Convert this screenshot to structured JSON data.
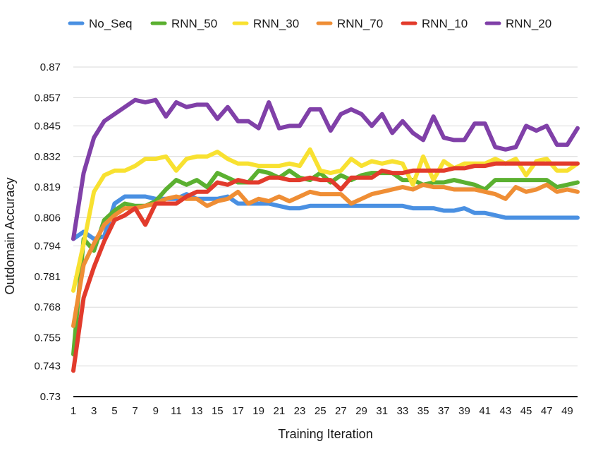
{
  "chart_data": {
    "type": "line",
    "xlabel": "Training Iteration",
    "ylabel": "Outdomain Accuracy",
    "ylim": [
      0.73,
      0.87
    ],
    "yticks": [
      "0.73",
      "0.743",
      "0.755",
      "0.768",
      "0.781",
      "0.794",
      "0.806",
      "0.819",
      "0.832",
      "0.845",
      "0.857",
      "0.87"
    ],
    "xlim": [
      1,
      50
    ],
    "xticks": [
      "1",
      "3",
      "5",
      "7",
      "9",
      "11",
      "13",
      "15",
      "17",
      "19",
      "21",
      "23",
      "25",
      "27",
      "29",
      "31",
      "33",
      "35",
      "37",
      "39",
      "41",
      "43",
      "45",
      "47",
      "49"
    ],
    "grid": "horizontal",
    "legend": "top",
    "x": [
      1,
      2,
      3,
      4,
      5,
      6,
      7,
      8,
      9,
      10,
      11,
      12,
      13,
      14,
      15,
      16,
      17,
      18,
      19,
      20,
      21,
      22,
      23,
      24,
      25,
      26,
      27,
      28,
      29,
      30,
      31,
      32,
      33,
      34,
      35,
      36,
      37,
      38,
      39,
      40,
      41,
      42,
      43,
      44,
      45,
      46,
      47,
      48,
      49,
      50
    ],
    "series": [
      {
        "name": "No_Seq",
        "color": "#4a90e2",
        "values": [
          0.797,
          0.8,
          0.797,
          0.798,
          0.812,
          0.815,
          0.815,
          0.815,
          0.814,
          0.814,
          0.814,
          0.816,
          0.814,
          0.814,
          0.814,
          0.815,
          0.812,
          0.812,
          0.812,
          0.812,
          0.811,
          0.81,
          0.81,
          0.811,
          0.811,
          0.811,
          0.811,
          0.811,
          0.811,
          0.811,
          0.811,
          0.811,
          0.811,
          0.81,
          0.81,
          0.81,
          0.809,
          0.809,
          0.81,
          0.808,
          0.808,
          0.807,
          0.806,
          0.806,
          0.806,
          0.806,
          0.806,
          0.806,
          0.806,
          0.806
        ]
      },
      {
        "name": "RNN_50",
        "color": "#5bb030",
        "values": [
          0.748,
          0.797,
          0.792,
          0.805,
          0.809,
          0.812,
          0.811,
          0.811,
          0.813,
          0.818,
          0.822,
          0.82,
          0.822,
          0.819,
          0.825,
          0.823,
          0.821,
          0.821,
          0.826,
          0.825,
          0.823,
          0.826,
          0.823,
          0.822,
          0.825,
          0.821,
          0.824,
          0.822,
          0.824,
          0.825,
          0.825,
          0.825,
          0.822,
          0.822,
          0.82,
          0.821,
          0.821,
          0.822,
          0.821,
          0.82,
          0.818,
          0.822,
          0.822,
          0.822,
          0.822,
          0.822,
          0.822,
          0.819,
          0.82,
          0.821
        ]
      },
      {
        "name": "RNN_30",
        "color": "#f8e131",
        "values": [
          0.775,
          0.795,
          0.817,
          0.824,
          0.826,
          0.826,
          0.828,
          0.831,
          0.831,
          0.832,
          0.826,
          0.831,
          0.832,
          0.832,
          0.834,
          0.831,
          0.829,
          0.829,
          0.828,
          0.828,
          0.828,
          0.829,
          0.828,
          0.835,
          0.826,
          0.825,
          0.826,
          0.831,
          0.828,
          0.83,
          0.829,
          0.83,
          0.829,
          0.82,
          0.832,
          0.822,
          0.83,
          0.827,
          0.829,
          0.829,
          0.829,
          0.831,
          0.829,
          0.831,
          0.824,
          0.83,
          0.831,
          0.826,
          0.826,
          0.829
        ]
      },
      {
        "name": "RNN_70",
        "color": "#ef8e35",
        "values": [
          0.76,
          0.786,
          0.795,
          0.803,
          0.807,
          0.81,
          0.81,
          0.811,
          0.812,
          0.814,
          0.815,
          0.814,
          0.814,
          0.811,
          0.813,
          0.814,
          0.817,
          0.812,
          0.814,
          0.813,
          0.815,
          0.813,
          0.815,
          0.817,
          0.816,
          0.816,
          0.816,
          0.812,
          0.814,
          0.816,
          0.817,
          0.818,
          0.819,
          0.818,
          0.82,
          0.819,
          0.819,
          0.818,
          0.818,
          0.818,
          0.817,
          0.816,
          0.814,
          0.819,
          0.817,
          0.818,
          0.82,
          0.817,
          0.818,
          0.817
        ]
      },
      {
        "name": "RNN_10",
        "color": "#e23b2c",
        "values": [
          0.741,
          0.772,
          0.785,
          0.796,
          0.805,
          0.807,
          0.81,
          0.803,
          0.812,
          0.812,
          0.812,
          0.815,
          0.817,
          0.817,
          0.821,
          0.82,
          0.822,
          0.821,
          0.821,
          0.823,
          0.823,
          0.822,
          0.822,
          0.823,
          0.822,
          0.822,
          0.818,
          0.823,
          0.823,
          0.823,
          0.826,
          0.825,
          0.825,
          0.826,
          0.826,
          0.826,
          0.826,
          0.827,
          0.827,
          0.828,
          0.828,
          0.829,
          0.829,
          0.829,
          0.829,
          0.829,
          0.829,
          0.829,
          0.829,
          0.829
        ]
      },
      {
        "name": "RNN_20",
        "color": "#8040a8",
        "values": [
          0.797,
          0.825,
          0.84,
          0.847,
          0.85,
          0.853,
          0.856,
          0.855,
          0.856,
          0.849,
          0.855,
          0.853,
          0.854,
          0.854,
          0.848,
          0.853,
          0.847,
          0.847,
          0.844,
          0.855,
          0.844,
          0.845,
          0.845,
          0.852,
          0.852,
          0.843,
          0.85,
          0.852,
          0.85,
          0.845,
          0.85,
          0.842,
          0.847,
          0.842,
          0.839,
          0.849,
          0.84,
          0.839,
          0.839,
          0.846,
          0.846,
          0.836,
          0.835,
          0.836,
          0.845,
          0.843,
          0.845,
          0.837,
          0.837,
          0.844
        ]
      }
    ]
  }
}
